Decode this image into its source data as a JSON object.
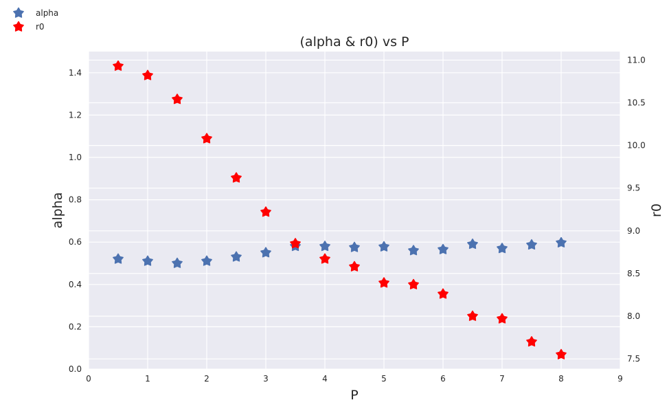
{
  "chart_data": {
    "type": "scatter",
    "title": "(alpha & r0) vs P",
    "xlabel": "P",
    "xlim": [
      0,
      9
    ],
    "xticks": [
      0,
      1,
      2,
      3,
      4,
      5,
      6,
      7,
      8,
      9
    ],
    "x": [
      0.5,
      1.0,
      1.5,
      2.0,
      2.5,
      3.0,
      3.5,
      4.0,
      4.5,
      5.0,
      5.5,
      6.0,
      6.5,
      7.0,
      7.5,
      8.0
    ],
    "left_axis": {
      "label": "alpha",
      "lim": [
        0,
        1.5
      ],
      "ticks": [
        "0.0",
        "0.2",
        "0.4",
        "0.6",
        "0.8",
        "1.0",
        "1.2",
        "1.4"
      ]
    },
    "right_axis": {
      "label": "r0",
      "lim": [
        7.38,
        11.1
      ],
      "ticks": [
        "7.5",
        "8.0",
        "8.5",
        "9.0",
        "9.5",
        "10.0",
        "10.5",
        "11.0"
      ]
    },
    "series": [
      {
        "name": "alpha",
        "axis": "left",
        "color": "#4c72b0",
        "marker": "star",
        "values": [
          0.52,
          0.51,
          0.5,
          0.51,
          0.53,
          0.55,
          0.58,
          0.58,
          0.575,
          0.578,
          0.56,
          0.565,
          0.59,
          0.57,
          0.587,
          0.597
        ]
      },
      {
        "name": "r0",
        "axis": "right",
        "color": "#ff0000",
        "marker": "star",
        "values": [
          10.93,
          10.82,
          10.54,
          10.08,
          9.62,
          9.22,
          8.85,
          8.67,
          8.58,
          8.39,
          8.37,
          8.26,
          8.0,
          7.97,
          7.7,
          7.55
        ]
      }
    ],
    "grid": true,
    "legend_position": "top-left outside"
  }
}
